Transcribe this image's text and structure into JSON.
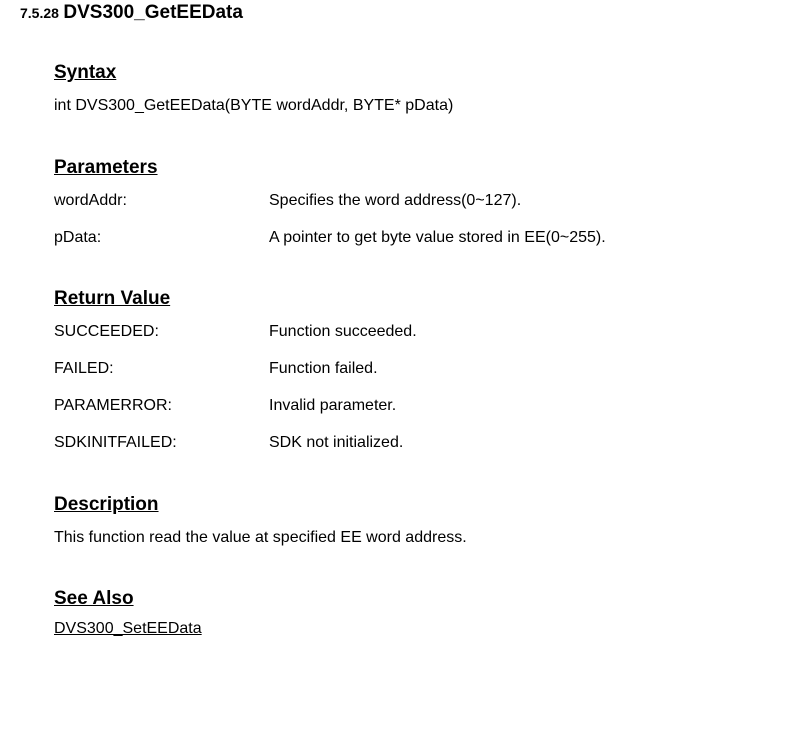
{
  "header": {
    "section_number": "7.5.28",
    "function_name": "DVS300_GetEEData"
  },
  "syntax": {
    "heading": "Syntax",
    "signature": "int DVS300_GetEEData(BYTE wordAddr, BYTE* pData)"
  },
  "parameters": {
    "heading": "Parameters",
    "items": [
      {
        "name": "wordAddr:",
        "desc": "Specifies the word address(0~127)."
      },
      {
        "name": "pData:",
        "desc": "A pointer to get byte value stored in EE(0~255)."
      }
    ]
  },
  "return_value": {
    "heading": "Return Value",
    "items": [
      {
        "name": "SUCCEEDED:",
        "desc": "Function succeeded."
      },
      {
        "name": "FAILED:",
        "desc": "Function failed."
      },
      {
        "name": "PARAMERROR:",
        "desc": "Invalid parameter."
      },
      {
        "name": "SDKINITFAILED:",
        "desc": "SDK not initialized."
      }
    ]
  },
  "description": {
    "heading": "Description",
    "text": "This function read the value at specified EE word address."
  },
  "see_also": {
    "heading": "See Also",
    "link": "DVS300_SetEEData"
  }
}
